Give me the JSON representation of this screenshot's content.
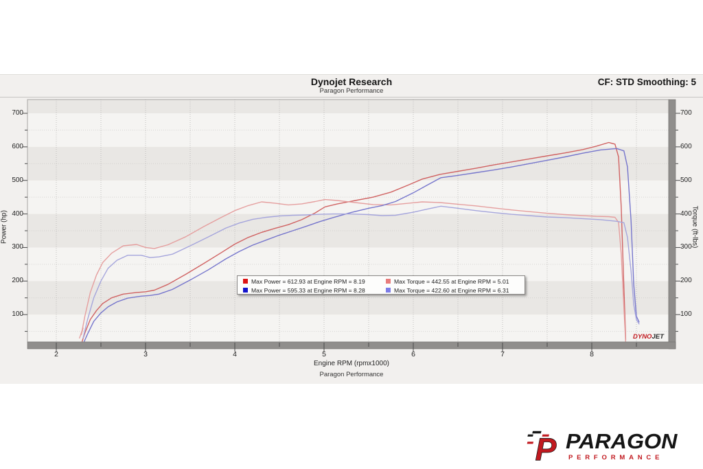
{
  "header": {
    "title": "Dynojet Research",
    "subtitle": "Paragon Performance",
    "cf_label": "CF: STD Smoothing: 5"
  },
  "axes": {
    "x": {
      "title": "Engine RPM (rpmx1000)",
      "ticks": [
        "2",
        "3",
        "4",
        "5",
        "6",
        "7",
        "8"
      ]
    },
    "power": {
      "title": "Power (hp)",
      "ticks": [
        "100",
        "200",
        "300",
        "400",
        "500",
        "600",
        "700"
      ]
    },
    "torque": {
      "title": "Torque (ft-lbs)",
      "ticks": [
        "100",
        "200",
        "300",
        "400",
        "500",
        "600",
        "700"
      ]
    }
  },
  "footer": {
    "brand": "Paragon Performance"
  },
  "watermark": {
    "part1": "DYNO",
    "part2": "JET"
  },
  "brand_logo": {
    "letter": "P",
    "name": "PARAGON",
    "tagline": "PERFORMANCE"
  },
  "colors": {
    "region_bg": "#f2f0ee",
    "band_light": "#f5f4f2",
    "band_gray": "#e9e7e4",
    "bevel": "#908e8c",
    "bevel_edge": "#6f6d6b",
    "frame": "#a8a6a4",
    "grid_vertical": "#b9b7b5",
    "grid_horizontal": "#c9c7c5",
    "tick": "#4a4a4a"
  },
  "chart_data": {
    "type": "line",
    "title": "Dynojet Research",
    "subtitle": "Paragon Performance",
    "xlabel": "Engine RPM (rpmx1000)",
    "ylabel_left": "Power (hp)",
    "ylabel_right": "Torque (ft-lbs)",
    "xlim": [
      1.68,
      8.86
    ],
    "ylim": [
      0,
      741
    ],
    "x_ticks": [
      2,
      3,
      4,
      5,
      6,
      7,
      8
    ],
    "x_minor_step": 0.5,
    "y_ticks": [
      100,
      200,
      300,
      400,
      500,
      600,
      700
    ],
    "y_minor_step": 50,
    "grid": "dotted",
    "legend_position": "center-bottom",
    "series": [
      {
        "name": "power-run1",
        "legend_label": "Max Power = 612.93 at Engine RPM = 8.19",
        "peak": {
          "value": 612.93,
          "rpm": 8.19
        },
        "color": "#d06262",
        "swatch": "#dd1414",
        "points": [
          [
            2.28,
            12
          ],
          [
            2.32,
            45
          ],
          [
            2.38,
            85
          ],
          [
            2.45,
            112
          ],
          [
            2.52,
            133
          ],
          [
            2.62,
            150
          ],
          [
            2.75,
            161
          ],
          [
            2.9,
            166
          ],
          [
            3.0,
            168
          ],
          [
            3.1,
            173
          ],
          [
            3.25,
            190
          ],
          [
            3.45,
            220
          ],
          [
            3.65,
            252
          ],
          [
            3.85,
            285
          ],
          [
            4.0,
            310
          ],
          [
            4.15,
            330
          ],
          [
            4.3,
            345
          ],
          [
            4.45,
            357
          ],
          [
            4.6,
            368
          ],
          [
            4.75,
            383
          ],
          [
            4.9,
            403
          ],
          [
            5.01,
            421
          ],
          [
            5.15,
            430
          ],
          [
            5.35,
            440
          ],
          [
            5.55,
            450
          ],
          [
            5.75,
            465
          ],
          [
            5.95,
            487
          ],
          [
            6.1,
            504
          ],
          [
            6.3,
            518
          ],
          [
            6.5,
            527
          ],
          [
            6.7,
            536
          ],
          [
            6.9,
            546
          ],
          [
            7.1,
            555
          ],
          [
            7.3,
            564
          ],
          [
            7.5,
            573
          ],
          [
            7.7,
            582
          ],
          [
            7.9,
            592
          ],
          [
            8.05,
            602
          ],
          [
            8.19,
            613
          ],
          [
            8.26,
            608
          ],
          [
            8.3,
            570
          ],
          [
            8.33,
            420
          ],
          [
            8.36,
            180
          ],
          [
            8.38,
            25
          ]
        ]
      },
      {
        "name": "torque-run1",
        "legend_label": "Max Torque = 442.55 at Engine RPM = 5.01",
        "peak": {
          "value": 442.55,
          "rpm": 5.01
        },
        "color": "#e59e9e",
        "swatch": "#e87c7c",
        "points": [
          [
            2.26,
            30
          ],
          [
            2.3,
            60
          ],
          [
            2.28,
            40
          ],
          [
            2.32,
            95
          ],
          [
            2.38,
            165
          ],
          [
            2.45,
            218
          ],
          [
            2.52,
            255
          ],
          [
            2.62,
            283
          ],
          [
            2.75,
            305
          ],
          [
            2.9,
            309
          ],
          [
            3.0,
            300
          ],
          [
            3.1,
            297
          ],
          [
            3.25,
            308
          ],
          [
            3.45,
            332
          ],
          [
            3.65,
            362
          ],
          [
            3.85,
            390
          ],
          [
            4.0,
            410
          ],
          [
            4.15,
            425
          ],
          [
            4.3,
            436
          ],
          [
            4.45,
            432
          ],
          [
            4.6,
            427
          ],
          [
            4.75,
            430
          ],
          [
            4.9,
            437
          ],
          [
            5.01,
            443
          ],
          [
            5.15,
            440
          ],
          [
            5.35,
            434
          ],
          [
            5.55,
            428
          ],
          [
            5.75,
            427
          ],
          [
            5.95,
            432
          ],
          [
            6.1,
            436
          ],
          [
            6.3,
            434
          ],
          [
            6.5,
            429
          ],
          [
            6.7,
            424
          ],
          [
            6.9,
            418
          ],
          [
            7.1,
            412
          ],
          [
            7.3,
            407
          ],
          [
            7.5,
            402
          ],
          [
            7.7,
            398
          ],
          [
            7.9,
            395
          ],
          [
            8.05,
            393
          ],
          [
            8.19,
            392
          ],
          [
            8.26,
            390
          ],
          [
            8.3,
            375
          ],
          [
            8.33,
            280
          ],
          [
            8.36,
            120
          ],
          [
            8.38,
            15
          ]
        ]
      },
      {
        "name": "power-run2",
        "legend_label": "Max Power = 595.33 at Engine RPM = 8.28",
        "peak": {
          "value": 595.33,
          "rpm": 8.28
        },
        "color": "#7575cc",
        "swatch": "#1414cc",
        "points": [
          [
            2.3,
            12
          ],
          [
            2.35,
            42
          ],
          [
            2.42,
            80
          ],
          [
            2.5,
            105
          ],
          [
            2.58,
            123
          ],
          [
            2.68,
            138
          ],
          [
            2.8,
            149
          ],
          [
            2.95,
            155
          ],
          [
            3.05,
            157
          ],
          [
            3.15,
            161
          ],
          [
            3.3,
            175
          ],
          [
            3.5,
            203
          ],
          [
            3.7,
            233
          ],
          [
            3.9,
            266
          ],
          [
            4.05,
            288
          ],
          [
            4.2,
            307
          ],
          [
            4.35,
            322
          ],
          [
            4.5,
            337
          ],
          [
            4.65,
            350
          ],
          [
            4.8,
            363
          ],
          [
            4.95,
            377
          ],
          [
            5.1,
            389
          ],
          [
            5.3,
            404
          ],
          [
            5.5,
            417
          ],
          [
            5.65,
            425
          ],
          [
            5.8,
            437
          ],
          [
            6.0,
            463
          ],
          [
            6.15,
            485
          ],
          [
            6.31,
            508
          ],
          [
            6.5,
            515
          ],
          [
            6.7,
            523
          ],
          [
            6.9,
            531
          ],
          [
            7.1,
            540
          ],
          [
            7.3,
            550
          ],
          [
            7.5,
            560
          ],
          [
            7.7,
            570
          ],
          [
            7.9,
            581
          ],
          [
            8.1,
            591
          ],
          [
            8.28,
            595
          ],
          [
            8.36,
            588
          ],
          [
            8.4,
            540
          ],
          [
            8.44,
            380
          ],
          [
            8.47,
            190
          ],
          [
            8.5,
            95
          ],
          [
            8.53,
            78
          ]
        ]
      },
      {
        "name": "torque-run2",
        "legend_label": "Max Torque = 422.60 at Engine RPM = 6.31",
        "peak": {
          "value": 422.6,
          "rpm": 6.31
        },
        "color": "#a5a5dc",
        "swatch": "#7c7ce8",
        "points": [
          [
            2.3,
            30
          ],
          [
            2.35,
            85
          ],
          [
            2.42,
            150
          ],
          [
            2.5,
            200
          ],
          [
            2.58,
            238
          ],
          [
            2.68,
            262
          ],
          [
            2.8,
            277
          ],
          [
            2.95,
            277
          ],
          [
            3.05,
            270
          ],
          [
            3.15,
            272
          ],
          [
            3.3,
            280
          ],
          [
            3.5,
            305
          ],
          [
            3.7,
            331
          ],
          [
            3.9,
            358
          ],
          [
            4.05,
            373
          ],
          [
            4.2,
            384
          ],
          [
            4.35,
            390
          ],
          [
            4.5,
            394
          ],
          [
            4.65,
            396
          ],
          [
            4.8,
            397
          ],
          [
            4.95,
            399
          ],
          [
            5.1,
            400
          ],
          [
            5.3,
            400
          ],
          [
            5.5,
            398
          ],
          [
            5.65,
            395
          ],
          [
            5.8,
            396
          ],
          [
            6.0,
            405
          ],
          [
            6.15,
            414
          ],
          [
            6.31,
            423
          ],
          [
            6.5,
            417
          ],
          [
            6.7,
            410
          ],
          [
            6.9,
            404
          ],
          [
            7.1,
            399
          ],
          [
            7.3,
            395
          ],
          [
            7.5,
            391
          ],
          [
            7.7,
            389
          ],
          [
            7.9,
            386
          ],
          [
            8.1,
            383
          ],
          [
            8.28,
            378
          ],
          [
            8.36,
            374
          ],
          [
            8.4,
            330
          ],
          [
            8.44,
            230
          ],
          [
            8.47,
            130
          ],
          [
            8.5,
            85
          ],
          [
            8.53,
            72
          ]
        ]
      }
    ]
  }
}
